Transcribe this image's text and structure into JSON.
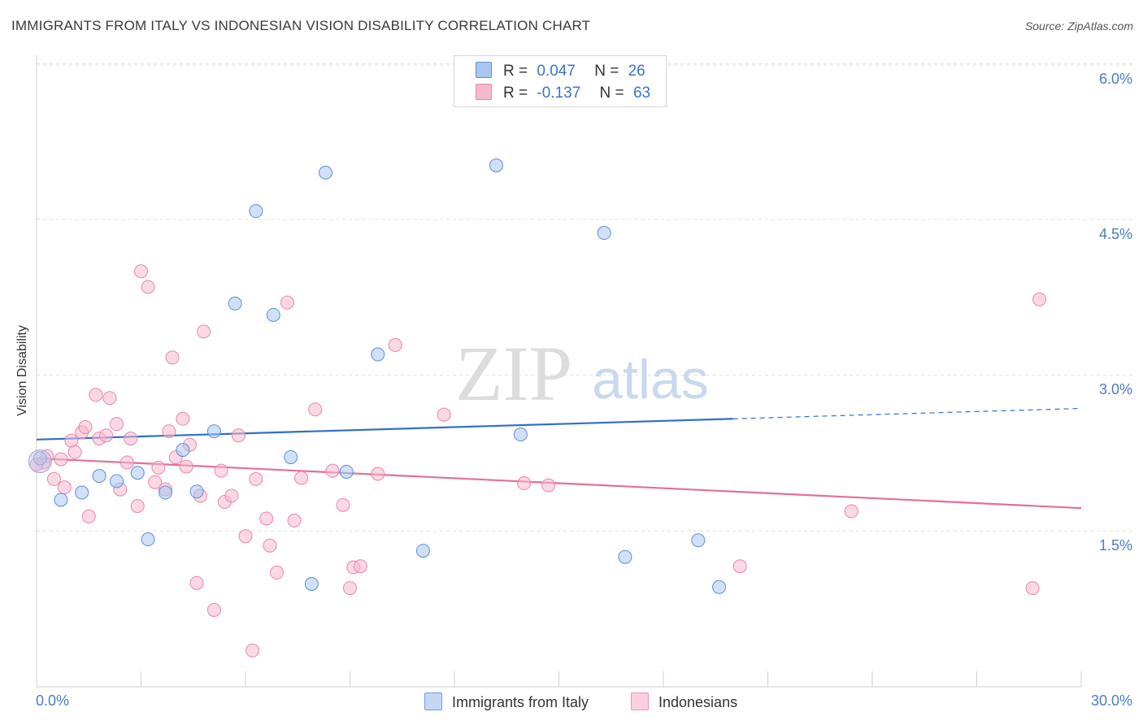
{
  "header": {
    "title": "IMMIGRANTS FROM ITALY VS INDONESIAN VISION DISABILITY CORRELATION CHART",
    "source": "Source: ZipAtlas.com"
  },
  "watermark": {
    "zip": "ZIP",
    "atlas": "atlas"
  },
  "legend": {
    "r_label": "R =",
    "n_label": "N =",
    "italy": {
      "r": "0.047",
      "n": "26"
    },
    "indonesians": {
      "r": "-0.137",
      "n": "63"
    }
  },
  "chart_data": {
    "type": "scatter",
    "title": "IMMIGRANTS FROM ITALY VS INDONESIAN VISION DISABILITY CORRELATION CHART",
    "ylabel": "Vision Disability",
    "xlabel": "",
    "xlim": [
      0,
      30
    ],
    "ylim": [
      0,
      6.2
    ],
    "x_tick_labels": [
      "0.0%",
      "30.0%"
    ],
    "y_ticks": [
      1.5,
      3.0,
      4.5,
      6.0
    ],
    "y_tick_labels": [
      "1.5%",
      "3.0%",
      "4.5%",
      "6.0%"
    ],
    "grid": "horizontal dashed",
    "legend_position": "top-center",
    "series": [
      {
        "name": "Immigrants from Italy",
        "color": "#a9c6ee",
        "edge": "#5b8fd8",
        "trend_color": "#2f6fc8",
        "trend": {
          "x": [
            0,
            20
          ],
          "y": [
            2.38,
            2.58
          ],
          "dashed_to": [
            30,
            2.68
          ]
        },
        "points": [
          [
            0.1,
            2.2
          ],
          [
            0.7,
            1.8
          ],
          [
            1.3,
            1.87
          ],
          [
            1.8,
            2.03
          ],
          [
            2.3,
            1.98
          ],
          [
            2.9,
            2.06
          ],
          [
            3.2,
            1.42
          ],
          [
            3.7,
            1.87
          ],
          [
            4.2,
            2.28
          ],
          [
            4.6,
            1.88
          ],
          [
            5.1,
            2.46
          ],
          [
            5.7,
            3.69
          ],
          [
            6.3,
            4.58
          ],
          [
            6.8,
            3.58
          ],
          [
            7.3,
            2.21
          ],
          [
            7.9,
            0.99
          ],
          [
            8.3,
            4.95
          ],
          [
            8.9,
            2.07
          ],
          [
            9.8,
            3.2
          ],
          [
            11.1,
            1.31
          ],
          [
            13.2,
            5.02
          ],
          [
            13.9,
            2.43
          ],
          [
            16.3,
            4.37
          ],
          [
            16.9,
            1.25
          ],
          [
            19.0,
            1.41
          ],
          [
            19.6,
            0.96
          ]
        ]
      },
      {
        "name": "Indonesians",
        "color": "#f7b8cc",
        "edge": "#e48aa6",
        "trend_color": "#e36f98",
        "trend": {
          "x": [
            0,
            30
          ],
          "y": [
            2.2,
            1.72
          ]
        },
        "points": [
          [
            0.2,
            2.16
          ],
          [
            0.3,
            2.22
          ],
          [
            0.5,
            2.0
          ],
          [
            0.7,
            2.19
          ],
          [
            0.8,
            1.92
          ],
          [
            1.0,
            2.37
          ],
          [
            1.1,
            2.26
          ],
          [
            1.3,
            2.45
          ],
          [
            1.4,
            2.5
          ],
          [
            1.5,
            1.64
          ],
          [
            1.7,
            2.81
          ],
          [
            1.8,
            2.39
          ],
          [
            2.0,
            2.42
          ],
          [
            2.1,
            2.78
          ],
          [
            2.3,
            2.53
          ],
          [
            2.4,
            1.9
          ],
          [
            2.6,
            2.16
          ],
          [
            2.7,
            2.39
          ],
          [
            2.9,
            1.74
          ],
          [
            3.0,
            4.0
          ],
          [
            3.2,
            3.85
          ],
          [
            3.4,
            1.97
          ],
          [
            3.5,
            2.11
          ],
          [
            3.7,
            1.9
          ],
          [
            3.8,
            2.46
          ],
          [
            3.9,
            3.17
          ],
          [
            4.0,
            2.21
          ],
          [
            4.2,
            2.58
          ],
          [
            4.3,
            2.12
          ],
          [
            4.4,
            2.33
          ],
          [
            4.6,
            1.0
          ],
          [
            4.7,
            1.84
          ],
          [
            4.8,
            3.42
          ],
          [
            5.1,
            0.74
          ],
          [
            5.3,
            2.08
          ],
          [
            5.4,
            1.78
          ],
          [
            5.6,
            1.84
          ],
          [
            5.8,
            2.42
          ],
          [
            6.0,
            1.45
          ],
          [
            6.2,
            0.35
          ],
          [
            6.3,
            2.0
          ],
          [
            6.6,
            1.62
          ],
          [
            6.7,
            1.36
          ],
          [
            6.9,
            1.1
          ],
          [
            7.2,
            3.7
          ],
          [
            7.4,
            1.6
          ],
          [
            7.6,
            2.01
          ],
          [
            8.0,
            2.67
          ],
          [
            8.5,
            2.08
          ],
          [
            8.8,
            1.75
          ],
          [
            9.0,
            0.95
          ],
          [
            9.1,
            1.15
          ],
          [
            9.3,
            1.16
          ],
          [
            9.8,
            2.05
          ],
          [
            10.3,
            3.29
          ],
          [
            11.7,
            2.62
          ],
          [
            14.0,
            1.96
          ],
          [
            14.7,
            1.94
          ],
          [
            20.2,
            1.16
          ],
          [
            23.4,
            1.69
          ],
          [
            28.6,
            0.95
          ],
          [
            28.8,
            3.73
          ],
          [
            0.0,
            2.14
          ]
        ]
      }
    ]
  },
  "bottom_legend": {
    "italy_label": "Immigrants from Italy",
    "indonesians_label": "Indonesians"
  }
}
